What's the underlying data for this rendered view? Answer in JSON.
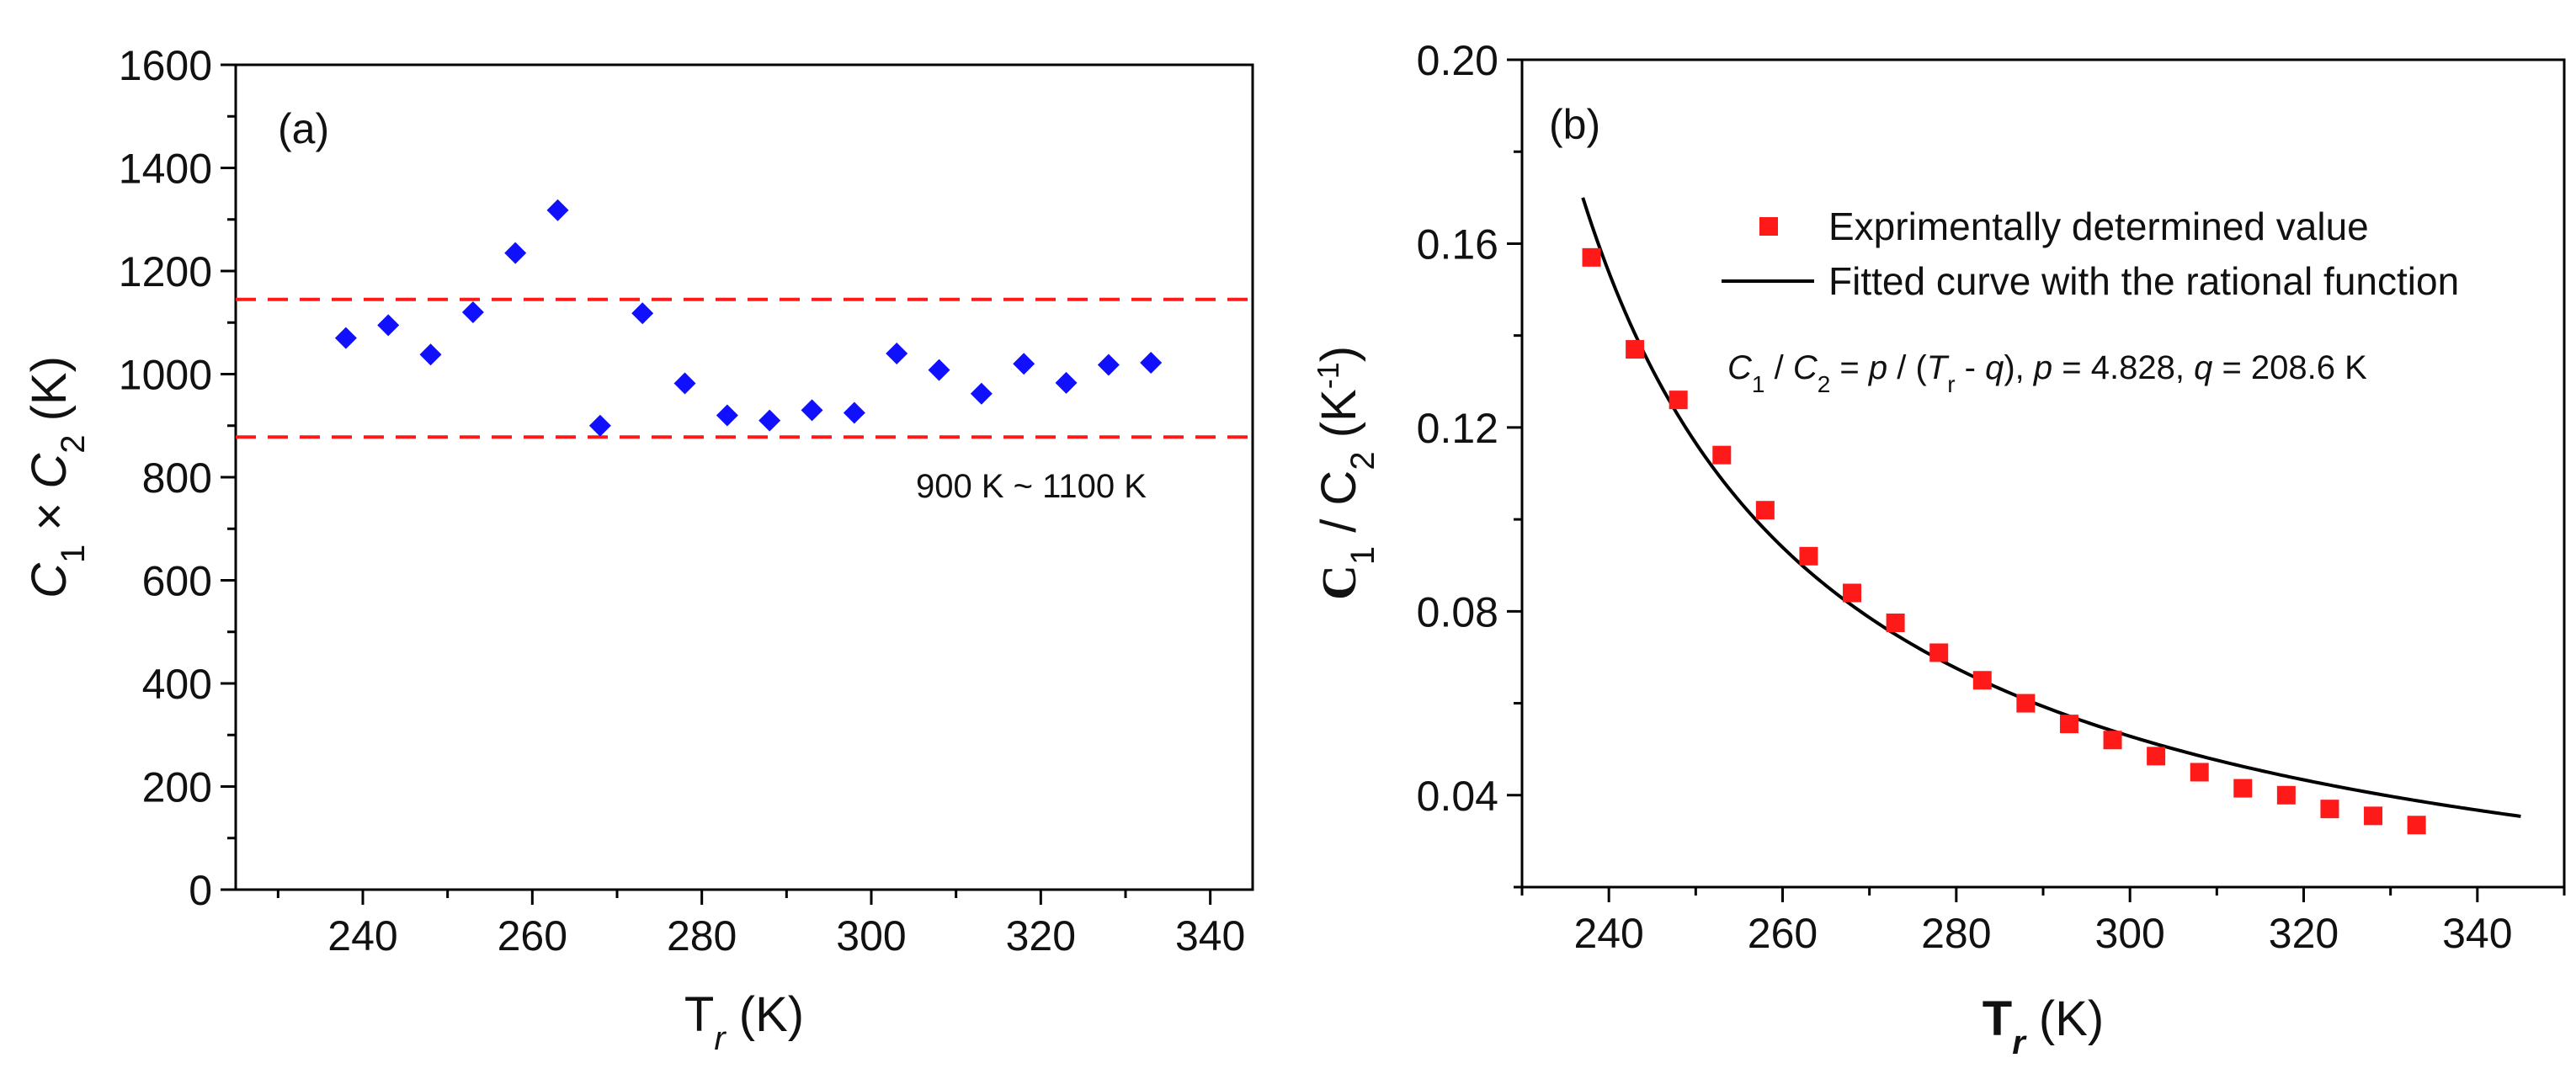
{
  "chart_data": [
    {
      "panel_label": "(a)",
      "type": "scatter",
      "marker": "diamond",
      "color": "#1010ff",
      "xlabel": {
        "main": "T",
        "sub": "r",
        "unit": " (K)"
      },
      "ylabel": {
        "c1": "C",
        "s1": "1",
        "op": " × ",
        "c2": "C",
        "s2": "2",
        "unit": " (K)"
      },
      "xlim": [
        225,
        345
      ],
      "ylim": [
        0,
        1600
      ],
      "xticks": [
        "240",
        "260",
        "280",
        "300",
        "320",
        "340"
      ],
      "yticks": [
        "0",
        "200",
        "400",
        "600",
        "800",
        "1000",
        "1200",
        "1400",
        "1600"
      ],
      "x": [
        238,
        243,
        248,
        253,
        258,
        263,
        268,
        273,
        278,
        283,
        288,
        293,
        298,
        303,
        308,
        313,
        318,
        323,
        328,
        333
      ],
      "y": [
        1070,
        1095,
        1038,
        1120,
        1235,
        1318,
        900,
        1118,
        982,
        920,
        910,
        930,
        925,
        1040,
        1008,
        962,
        1020,
        983,
        1018,
        1022
      ],
      "reference_lines": {
        "color": "#ff1a1a",
        "y": [
          1145,
          878
        ]
      },
      "annotation": "900 K ~ 1100 K",
      "grid": false
    },
    {
      "panel_label": "(b)",
      "type": "scatter",
      "marker": "square",
      "color": "#ff1a1a",
      "curve_color": "#000000",
      "xlabel": {
        "main": "T",
        "sub": "r",
        "unit": " (K)"
      },
      "ylabel": {
        "c1": "C",
        "s1": "1",
        "op": " / ",
        "c2": "C",
        "s2": "2",
        "unit_pre": " (K",
        "sup": "-1",
        "unit_post": ")"
      },
      "xlim": [
        230,
        350
      ],
      "ylim": [
        0.02,
        0.2
      ],
      "xticks": [
        "240",
        "260",
        "280",
        "300",
        "320",
        "340"
      ],
      "yticks": [
        "0.04",
        "0.08",
        "0.12",
        "0.16",
        "0.20"
      ],
      "series": [
        {
          "name": "Exprimentally determined value",
          "x": [
            238,
            243,
            248,
            253,
            258,
            263,
            268,
            273,
            278,
            283,
            288,
            293,
            298,
            303,
            308,
            313,
            318,
            323,
            328,
            333
          ],
          "y": [
            0.157,
            0.137,
            0.126,
            0.114,
            0.102,
            0.092,
            0.084,
            0.0775,
            0.071,
            0.065,
            0.06,
            0.0555,
            0.052,
            0.0485,
            0.045,
            0.0415,
            0.04,
            0.037,
            0.0355,
            0.0335
          ]
        },
        {
          "name": "Fitted curve with the rational function",
          "type": "line",
          "p": 4.828,
          "q": 208.6,
          "x_range": [
            237,
            345
          ]
        }
      ],
      "equation": {
        "t1": "C",
        "s1": "1",
        "t2": " / ",
        "t3": "C",
        "s2": "2",
        "t4": " = ",
        "t5": "p",
        "t6": " / (",
        "t7": "T",
        "s3": "r",
        "t8": " - ",
        "t9": "q",
        "t10": "), ",
        "t11": "p",
        "t12": " = 4.828, ",
        "t13": "q",
        "t14": " = 208.6 K"
      },
      "legend_position": "top-right",
      "grid": false
    }
  ]
}
